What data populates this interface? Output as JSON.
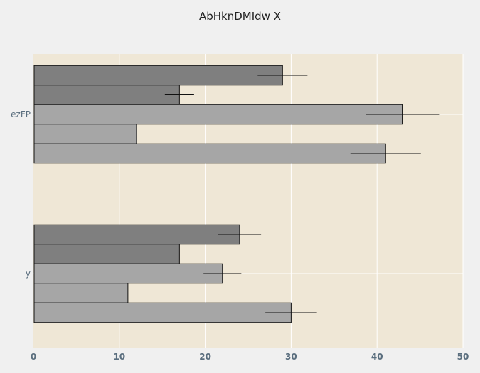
{
  "chart_data": {
    "type": "bar",
    "orientation": "horizontal",
    "title": "AbHknDMIdw X",
    "xlabel": "",
    "ylabel": "",
    "xlim": [
      0,
      50
    ],
    "x_ticks": [
      0,
      10,
      20,
      30,
      40,
      50
    ],
    "grid": true,
    "categories": [
      "ezFP",
      "y"
    ],
    "series": [
      {
        "values": [
          29,
          24
        ],
        "errors": [
          2.9,
          2.5
        ],
        "color": "#7f7f7f"
      },
      {
        "values": [
          17,
          17
        ],
        "errors": [
          1.7,
          1.7
        ],
        "color": "#7f7f7f"
      },
      {
        "values": [
          43,
          22
        ],
        "errors": [
          4.3,
          2.2
        ],
        "color": "#a6a6a6"
      },
      {
        "values": [
          12,
          11
        ],
        "errors": [
          1.2,
          1.1
        ],
        "color": "#a6a6a6"
      },
      {
        "values": [
          41,
          30
        ],
        "errors": [
          4.1,
          3.0
        ],
        "color": "#a6a6a6"
      }
    ],
    "colors": {
      "plot_background": "#efe7d6",
      "page_background": "#f0f0f0",
      "grid": "#ffffff",
      "tick_text": "#5a6e7e"
    }
  }
}
